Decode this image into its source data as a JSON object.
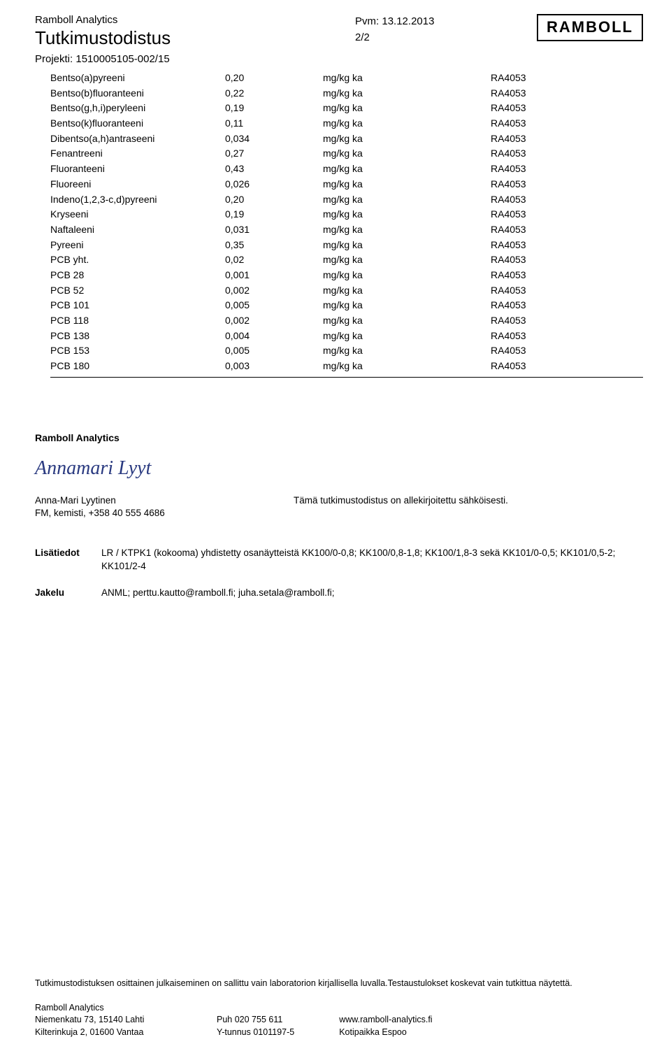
{
  "header": {
    "company": "Ramboll Analytics",
    "title": "Tutkimustodistus",
    "project_label": "Projekti:",
    "project_value": "1510005105-002/15",
    "date_label": "Pvm:",
    "date_value": "13.12.2013",
    "page": "2/2",
    "logo_text": "RAMBOLL"
  },
  "table": {
    "columns": {
      "name_width": 250,
      "val_width": 140,
      "unit_width": 240,
      "meth_width": 120
    },
    "rows": [
      {
        "name": "Bentso(a)pyreeni",
        "val": "0,20",
        "unit": "mg/kg ka",
        "meth": "RA4053"
      },
      {
        "name": "Bentso(b)fluoranteeni",
        "val": "0,22",
        "unit": "mg/kg ka",
        "meth": "RA4053"
      },
      {
        "name": "Bentso(g,h,i)peryleeni",
        "val": "0,19",
        "unit": "mg/kg ka",
        "meth": "RA4053"
      },
      {
        "name": "Bentso(k)fluoranteeni",
        "val": "0,11",
        "unit": "mg/kg ka",
        "meth": "RA4053"
      },
      {
        "name": "Dibentso(a,h)antraseeni",
        "val": "0,034",
        "unit": "mg/kg ka",
        "meth": "RA4053"
      },
      {
        "name": "Fenantreeni",
        "val": "0,27",
        "unit": "mg/kg ka",
        "meth": "RA4053"
      },
      {
        "name": "Fluoranteeni",
        "val": "0,43",
        "unit": "mg/kg ka",
        "meth": "RA4053"
      },
      {
        "name": "Fluoreeni",
        "val": "0,026",
        "unit": "mg/kg ka",
        "meth": "RA4053"
      },
      {
        "name": "Indeno(1,2,3-c,d)pyreeni",
        "val": "0,20",
        "unit": "mg/kg ka",
        "meth": "RA4053"
      },
      {
        "name": "Kryseeni",
        "val": "0,19",
        "unit": "mg/kg ka",
        "meth": "RA4053"
      },
      {
        "name": "Naftaleeni",
        "val": "0,031",
        "unit": "mg/kg ka",
        "meth": "RA4053"
      },
      {
        "name": "Pyreeni",
        "val": "0,35",
        "unit": "mg/kg ka",
        "meth": "RA4053"
      },
      {
        "name": "PCB yht.",
        "val": "0,02",
        "unit": "mg/kg ka",
        "meth": "RA4053"
      },
      {
        "name": "PCB 28",
        "val": "0,001",
        "unit": "mg/kg ka",
        "meth": "RA4053"
      },
      {
        "name": "PCB 52",
        "val": "0,002",
        "unit": "mg/kg ka",
        "meth": "RA4053"
      },
      {
        "name": "PCB 101",
        "val": "0,005",
        "unit": "mg/kg ka",
        "meth": "RA4053"
      },
      {
        "name": "PCB 118",
        "val": "0,002",
        "unit": "mg/kg ka",
        "meth": "RA4053"
      },
      {
        "name": "PCB 138",
        "val": "0,004",
        "unit": "mg/kg ka",
        "meth": "RA4053"
      },
      {
        "name": "PCB 153",
        "val": "0,005",
        "unit": "mg/kg ka",
        "meth": "RA4053"
      },
      {
        "name": "PCB 180",
        "val": "0,003",
        "unit": "mg/kg ka",
        "meth": "RA4053"
      }
    ]
  },
  "signature": {
    "company": "Ramboll Analytics",
    "script": "Annamari Lyyt",
    "name": "Anna-Mari Lyytinen",
    "title": "FM, kemisti, +358 40 555 4686",
    "statement": "Tämä tutkimustodistus on allekirjoitettu sähköisesti."
  },
  "info": {
    "extra_label": "Lisätiedot",
    "extra_text": "LR / KTPK1 (kokooma) yhdistetty osanäytteistä KK100/0-0,8; KK100/0,8-1,8; KK100/1,8-3 sekä KK101/0-0,5; KK101/0,5-2; KK101/2-4",
    "dist_label": "Jakelu",
    "dist_text": "ANML; perttu.kautto@ramboll.fi; juha.setala@ramboll.fi;"
  },
  "disclaimer": "Tutkimustodistuksen osittainen julkaiseminen on sallittu vain laboratorion kirjallisella luvalla.Testaustulokset koskevat vain tutkittua näytettä.",
  "footer": {
    "company": "Ramboll Analytics",
    "addr1": "Niemenkatu 73, 15140 Lahti",
    "addr2": "Kilterinkuja 2, 01600 Vantaa",
    "phone": "Puh 020 755 611",
    "ytunnus": "Y-tunnus 0101197-5",
    "web": "www.ramboll-analytics.fi",
    "koti": "Kotipaikka Espoo"
  }
}
